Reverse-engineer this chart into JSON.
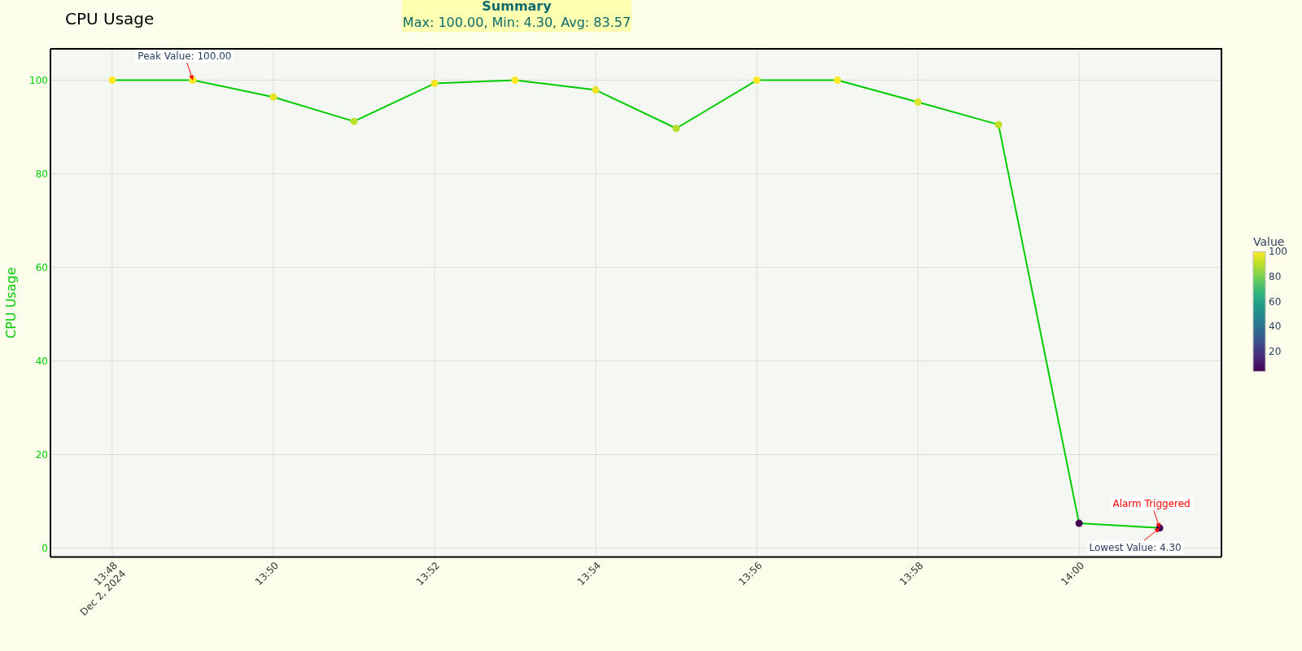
{
  "chart_data": {
    "type": "line",
    "title": "CPU Usage",
    "ylabel": "CPU Usage",
    "clabel": "Value",
    "x": [
      "2024-12-02T13:48",
      "2024-12-02T13:49",
      "2024-12-02T13:50",
      "2024-12-02T13:51",
      "2024-12-02T13:52",
      "2024-12-02T13:53",
      "2024-12-02T13:54",
      "2024-12-02T13:55",
      "2024-12-02T13:56",
      "2024-12-02T13:57",
      "2024-12-02T13:58",
      "2024-12-02T13:59",
      "2024-12-02T14:00",
      "2024-12-02T14:01"
    ],
    "series": [
      {
        "color": "#00cc00",
        "values": [
          100,
          100,
          96.4,
          91.2,
          99.3,
          100,
          97.9,
          89.7,
          100,
          100,
          95.3,
          90.5,
          5.3,
          4.3
        ]
      }
    ],
    "xlim": [
      "2024-12-02T13:47:14",
      "2024-12-02T14:01:46"
    ],
    "xticks": [
      {
        "value": "2024-12-02T13:48",
        "label": "13:48\nDec 2, 2024"
      },
      {
        "value": "2024-12-02T13:50",
        "label": "13:50"
      },
      {
        "value": "2024-12-02T13:52",
        "label": "13:52"
      },
      {
        "value": "2024-12-02T13:54",
        "label": "13:54"
      },
      {
        "value": "2024-12-02T13:56",
        "label": "13:56"
      },
      {
        "value": "2024-12-02T13:58",
        "label": "13:58"
      },
      {
        "value": "2024-12-02T14:00",
        "label": "14:00"
      }
    ],
    "ylim": [
      -1.9,
      106.7
    ],
    "yticks": [
      0,
      20,
      40,
      60,
      80,
      100
    ],
    "clim": [
      4.3,
      100
    ],
    "cticks": [
      20,
      40,
      60,
      80,
      100
    ],
    "grid": true,
    "marker": "circle",
    "line_style": "solid",
    "annotations": [
      "Summary",
      "Max: 100.00, Min: 4.30, Avg: 83.57",
      {
        "text": "Peak Value: 100.00",
        "x": "2024-12-02T13:49",
        "y": 100
      },
      {
        "text": "Lowest Value: 4.30",
        "x": "2024-12-02T14:01",
        "y": 4.3
      },
      {
        "text": "Alarm Triggered",
        "x": "2024-12-02T14:01",
        "y": 4.3
      }
    ]
  }
}
